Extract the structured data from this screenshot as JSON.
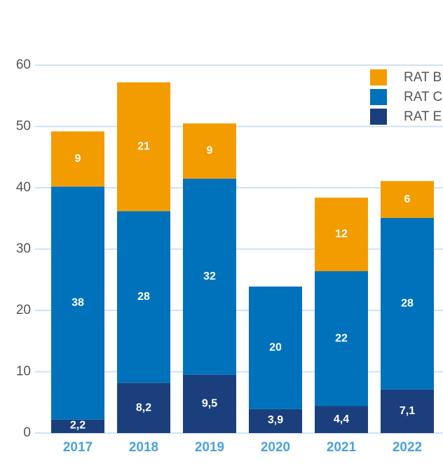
{
  "chart_data": {
    "type": "stacked_bar",
    "categories": [
      "2017",
      "2018",
      "2019",
      "2020",
      "2021",
      "2022"
    ],
    "series": [
      {
        "name": "RAT E",
        "color": "#1b3f7c",
        "values": [
          2.2,
          8.2,
          9.5,
          3.9,
          4.4,
          7.1
        ],
        "value_labels": [
          "2,2",
          "8,2",
          "9,5",
          "3,9",
          "4,4",
          "7,1"
        ]
      },
      {
        "name": "RAT C",
        "color": "#0072bc",
        "values": [
          38,
          28,
          32,
          20,
          22,
          28
        ]
      },
      {
        "name": "RAT B",
        "color": "#f39c00",
        "values": [
          9,
          21,
          9,
          null,
          12,
          6
        ]
      }
    ],
    "ylim": [
      0,
      60
    ],
    "yticks": [
      0,
      10,
      20,
      30,
      40,
      50,
      60
    ],
    "grid": true,
    "legend": "upper right"
  }
}
